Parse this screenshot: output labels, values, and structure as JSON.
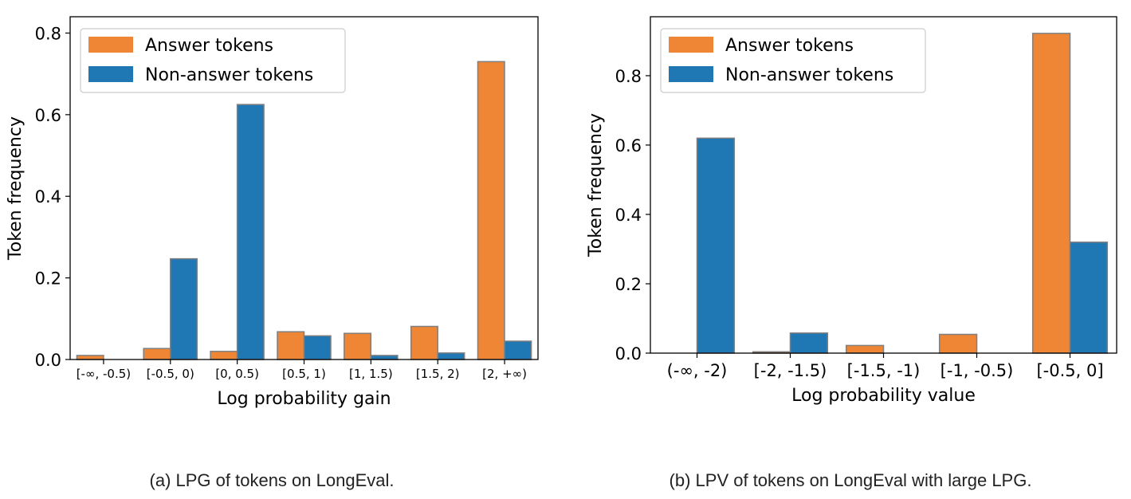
{
  "colors": {
    "answer": "#ef8636",
    "non_answer": "#1f77b4",
    "bar_edge": "#7f7f7f"
  },
  "chart_data": [
    {
      "type": "bar",
      "title": "",
      "xlabel": "Log probability gain",
      "ylabel": "Token frequency",
      "categories": [
        "[-∞, -0.5)",
        "[-0.5, 0)",
        "[0, 0.5)",
        "[0.5, 1)",
        "[1, 1.5)",
        "[1.5, 2)",
        "[2, +∞)"
      ],
      "series": [
        {
          "name": "Answer tokens",
          "values": [
            0.01,
            0.027,
            0.02,
            0.068,
            0.064,
            0.081,
            0.73
          ]
        },
        {
          "name": "Non-answer tokens",
          "values": [
            0.0,
            0.247,
            0.625,
            0.058,
            0.01,
            0.016,
            0.045
          ]
        }
      ],
      "ylim": [
        0,
        0.84
      ],
      "yticks": [
        0.0,
        0.2,
        0.4,
        0.6,
        0.8
      ],
      "ytick_labels": [
        "0.0",
        "0.2",
        "0.4",
        "0.6",
        "0.8"
      ],
      "legend": "top-left",
      "grid": false
    },
    {
      "type": "bar",
      "title": "",
      "xlabel": "Log probability value",
      "ylabel": "Token frequency",
      "categories": [
        "(-∞, -2)",
        "[-2, -1.5)",
        "[-1.5, -1)",
        "[-1, -0.5)",
        "[-0.5, 0]"
      ],
      "series": [
        {
          "name": "Answer tokens",
          "values": [
            0.0,
            0.004,
            0.022,
            0.054,
            0.922
          ]
        },
        {
          "name": "Non-answer tokens",
          "values": [
            0.62,
            0.058,
            0.0,
            0.0,
            0.32
          ]
        }
      ],
      "ylim": [
        0,
        0.97
      ],
      "yticks": [
        0.0,
        0.2,
        0.4,
        0.6,
        0.8
      ],
      "ytick_labels": [
        "0.0",
        "0.2",
        "0.4",
        "0.6",
        "0.8"
      ],
      "legend": "top-left",
      "grid": false
    }
  ],
  "captions": {
    "a": "(a) LPG of tokens on LongEval.",
    "b": "(b) LPV of tokens on LongEval with large LPG."
  }
}
